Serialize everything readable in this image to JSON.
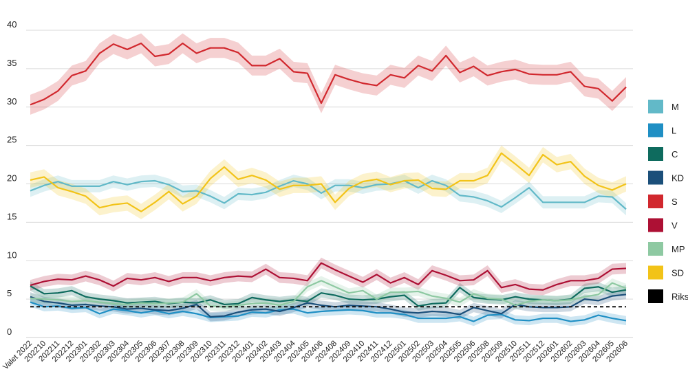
{
  "chart_data": {
    "type": "line",
    "title": "",
    "xlabel": "",
    "ylabel": "",
    "ylim": [
      0,
      40
    ],
    "yticks": [
      0,
      5,
      10,
      15,
      20,
      25,
      30,
      35,
      40
    ],
    "grid": "horizontal",
    "legend_position": "right",
    "reference_line": {
      "name": "Riksdagsspärr",
      "value": 4,
      "style": "dashed",
      "color": "#111111"
    },
    "categories": [
      "Valet 2022",
      "202210",
      "202211",
      "202212",
      "202301",
      "202302",
      "202303",
      "202304",
      "202305",
      "202306",
      "202307",
      "202308",
      "202309",
      "202310",
      "202311",
      "202312",
      "202401",
      "202402",
      "202403",
      "202404",
      "202405",
      "202406",
      "202408",
      "202409",
      "202410",
      "202411",
      "202412",
      "202501",
      "202502",
      "202503",
      "202504",
      "202505",
      "202506",
      "202508",
      "202509",
      "202510",
      "202511",
      "202512",
      "202601",
      "202602",
      "202603",
      "202604",
      "202605",
      "202606"
    ],
    "series": [
      {
        "name": "M",
        "color": "#62b9c8",
        "band": 0.8,
        "values": [
          19.1,
          19.8,
          20.3,
          19.7,
          19.7,
          19.7,
          20.3,
          19.9,
          20.3,
          20.4,
          19.9,
          19.0,
          19.1,
          18.4,
          17.5,
          18.7,
          18.6,
          18.9,
          19.7,
          20.4,
          20.0,
          18.8,
          19.8,
          19.8,
          19.5,
          19.9,
          20.0,
          20.4,
          19.5,
          20.4,
          19.8,
          18.5,
          18.3,
          17.8,
          17.0,
          18.2,
          19.5,
          17.6,
          17.6,
          17.6,
          17.6,
          18.4,
          18.3,
          16.7
        ]
      },
      {
        "name": "L",
        "color": "#1f8fc4",
        "band": 0.6,
        "values": [
          4.6,
          4.0,
          4.1,
          3.8,
          3.9,
          3.1,
          3.7,
          3.5,
          3.2,
          3.5,
          3.1,
          3.4,
          3.1,
          2.6,
          2.7,
          2.8,
          3.3,
          3.2,
          3.6,
          3.7,
          3.2,
          3.4,
          3.5,
          3.6,
          3.5,
          3.2,
          3.2,
          3.0,
          2.5,
          2.5,
          2.5,
          2.7,
          2.1,
          2.9,
          3.0,
          2.3,
          2.2,
          2.5,
          2.5,
          2.1,
          2.3,
          2.9,
          2.5,
          2.2
        ]
      },
      {
        "name": "C",
        "color": "#0e6b5e",
        "band": 0.6,
        "values": [
          6.7,
          5.7,
          5.8,
          6.1,
          5.3,
          5.0,
          4.8,
          4.5,
          4.6,
          4.7,
          4.4,
          4.6,
          4.5,
          4.9,
          4.3,
          4.4,
          5.2,
          4.9,
          4.7,
          4.9,
          4.7,
          5.8,
          5.5,
          5.0,
          4.9,
          5.0,
          5.3,
          5.5,
          4.1,
          4.4,
          4.5,
          6.5,
          5.2,
          5.0,
          4.9,
          5.3,
          5.0,
          4.9,
          4.8,
          5.0,
          6.4,
          6.6,
          5.9,
          6.2
        ]
      },
      {
        "name": "KD",
        "color": "#1b4f7a",
        "band": 0.6,
        "values": [
          5.3,
          4.7,
          4.5,
          4.2,
          4.3,
          4.1,
          4.0,
          3.7,
          3.8,
          3.6,
          3.5,
          3.8,
          4.3,
          2.7,
          2.8,
          3.3,
          3.6,
          3.7,
          3.4,
          3.9,
          4.5,
          4.2,
          4.0,
          4.2,
          4.1,
          4.0,
          3.7,
          3.3,
          3.2,
          3.4,
          3.3,
          3.0,
          3.9,
          3.5,
          3.1,
          4.3,
          4.0,
          3.9,
          3.9,
          4.0,
          5.0,
          4.8,
          5.4,
          5.6
        ]
      },
      {
        "name": "S",
        "color": "#d1282e",
        "band": 1.3,
        "values": [
          30.3,
          31.0,
          32.1,
          34.1,
          34.7,
          37.0,
          38.2,
          37.5,
          38.3,
          36.6,
          36.9,
          38.3,
          37.0,
          37.7,
          37.7,
          37.1,
          35.4,
          35.4,
          36.3,
          34.6,
          34.4,
          30.5,
          34.2,
          33.6,
          33.1,
          32.8,
          34.2,
          33.8,
          35.4,
          34.7,
          36.7,
          34.5,
          35.3,
          34.1,
          34.6,
          34.9,
          34.3,
          34.2,
          34.2,
          34.6,
          32.7,
          32.4,
          30.8,
          32.6
        ]
      },
      {
        "name": "V",
        "color": "#ad1034",
        "band": 0.7,
        "values": [
          6.8,
          7.3,
          7.6,
          7.5,
          8.0,
          7.5,
          6.7,
          7.7,
          7.5,
          7.8,
          7.3,
          7.8,
          7.8,
          7.4,
          7.8,
          8.0,
          7.9,
          8.9,
          7.8,
          7.7,
          7.4,
          9.7,
          8.8,
          8.0,
          7.2,
          8.2,
          7.1,
          7.8,
          6.9,
          8.7,
          8.1,
          7.4,
          7.5,
          8.7,
          6.5,
          6.9,
          6.3,
          6.2,
          6.9,
          7.4,
          7.4,
          7.7,
          8.9,
          9.0
        ]
      },
      {
        "name": "MP",
        "color": "#8ec9a2",
        "band": 0.6,
        "values": [
          5.1,
          5.0,
          4.9,
          4.7,
          4.8,
          4.6,
          4.4,
          4.3,
          4.5,
          4.4,
          4.5,
          4.6,
          5.7,
          4.1,
          4.0,
          4.2,
          4.4,
          4.5,
          4.2,
          4.7,
          6.6,
          7.4,
          6.6,
          5.8,
          6.1,
          5.0,
          5.9,
          5.9,
          6.0,
          5.4,
          5.1,
          4.6,
          5.7,
          5.1,
          5.0,
          4.2,
          4.7,
          4.9,
          4.8,
          4.9,
          5.3,
          5.6,
          7.1,
          6.4
        ]
      },
      {
        "name": "SD",
        "color": "#f2c318",
        "band": 1.0,
        "values": [
          20.5,
          20.9,
          19.5,
          19.0,
          18.4,
          16.9,
          17.3,
          17.5,
          16.4,
          17.6,
          19.0,
          17.4,
          18.4,
          20.7,
          22.2,
          20.6,
          21.1,
          20.5,
          19.3,
          19.8,
          19.8,
          20.0,
          17.6,
          19.4,
          20.3,
          20.6,
          19.9,
          20.4,
          20.5,
          19.4,
          19.3,
          20.4,
          20.4,
          21.1,
          24.0,
          22.6,
          21.1,
          23.8,
          22.5,
          22.9,
          21.0,
          19.8,
          19.2,
          20.0
        ]
      }
    ],
    "legend": [
      "M",
      "L",
      "C",
      "KD",
      "S",
      "V",
      "MP",
      "SD",
      "Riksdagsspärr"
    ]
  }
}
